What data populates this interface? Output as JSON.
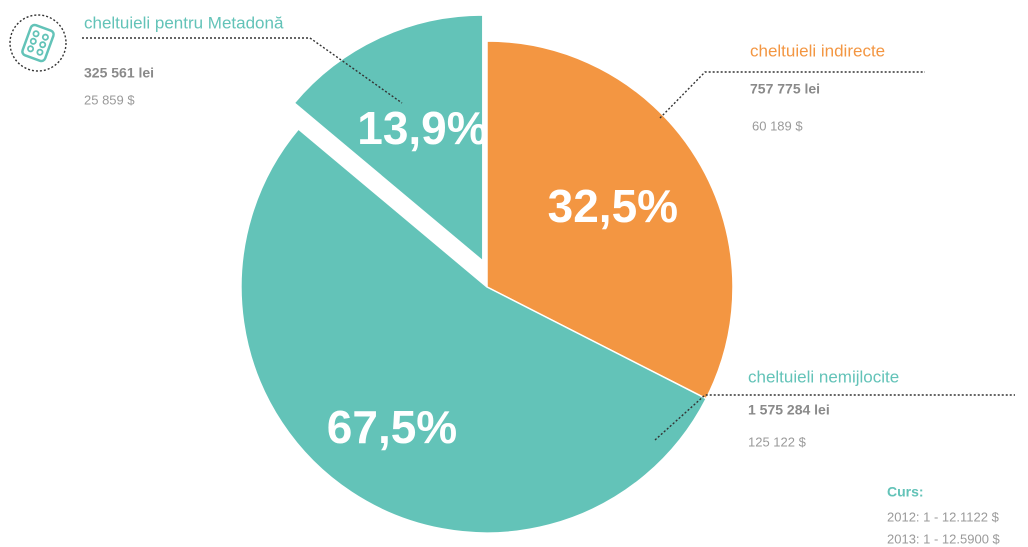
{
  "chart_data": {
    "type": "pie",
    "slices": [
      {
        "name": "cheltuieli indirecte",
        "value": 32.5,
        "value_label": "32,5%",
        "color": "#f39642",
        "lei": "757 775 lei",
        "usd": "60 189 $"
      },
      {
        "name": "cheltuieli nemijlocite",
        "value": 67.5,
        "value_label": "67,5%",
        "color": "#63c3b8",
        "lei": "1 575 284 lei",
        "usd": "125 122 $"
      }
    ],
    "exploded": {
      "name": "cheltuieli pentru Metadonă",
      "value": 13.9,
      "value_label": "13,9%",
      "color": "#63c3b8",
      "lei": "325 561 lei",
      "usd": "25 859 $"
    },
    "note": {
      "title": "Curs:",
      "lines": [
        "2012: 1 - 12.1122 $",
        "2013: 1 - 12.5900 $"
      ]
    }
  }
}
